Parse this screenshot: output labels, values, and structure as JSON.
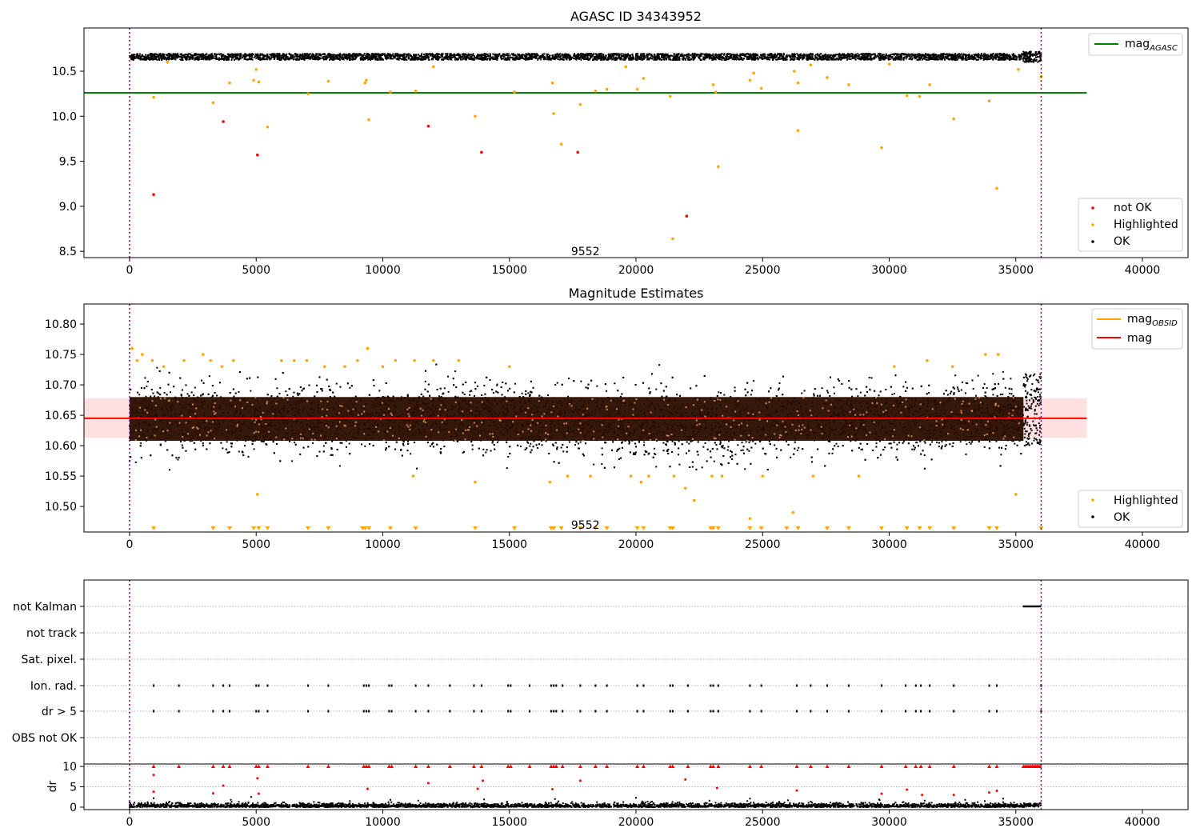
{
  "chart_data": [
    {
      "id": "agasc",
      "type": "scatter",
      "title": "AGASC ID 34343952",
      "xlim": [
        -1800,
        41800
      ],
      "ylim": [
        8.43,
        10.98
      ],
      "xticks": [
        0,
        5000,
        10000,
        15000,
        20000,
        25000,
        30000,
        35000,
        40000
      ],
      "yticks": [
        8.5,
        9.0,
        9.5,
        10.0,
        10.5
      ],
      "ytick_labels": [
        "8.5",
        "9.0",
        "9.5",
        "10.0",
        "10.5"
      ],
      "annotation": {
        "text": "9552",
        "x": 18000,
        "y": 8.5
      },
      "vlines": [
        0,
        36000
      ],
      "hline": {
        "y": 10.26,
        "x": [
          -1800,
          37800
        ],
        "color": "#008000",
        "label": "mag_AGASC"
      },
      "line_legend": {
        "label_main": "mag",
        "label_sub": "AGASC",
        "color": "#008000"
      },
      "band": {
        "center": 10.66,
        "spread": 0.035,
        "x_end": 35300,
        "color": "#000000"
      },
      "cluster": {
        "x": [
          35300,
          36000
        ],
        "y": [
          10.6,
          10.72
        ]
      },
      "series": [
        {
          "name": "not OK",
          "color": "#ff0000",
          "points": [
            [
              950,
              9.13
            ],
            [
              3700,
              9.94
            ],
            [
              5050,
              9.57
            ],
            [
              11800,
              9.89
            ],
            [
              13900,
              9.6
            ],
            [
              17700,
              9.6
            ],
            [
              22000,
              8.89
            ]
          ]
        },
        {
          "name": "Highlighted",
          "color": "#ffa500",
          "points": [
            [
              950,
              10.21
            ],
            [
              3300,
              10.15
            ],
            [
              3950,
              10.37
            ],
            [
              4900,
              10.4
            ],
            [
              5100,
              10.38
            ],
            [
              5450,
              9.88
            ],
            [
              5000,
              10.52
            ],
            [
              7050,
              10.25
            ],
            [
              7850,
              10.39
            ],
            [
              9350,
              10.4
            ],
            [
              9450,
              9.96
            ],
            [
              9300,
              10.37
            ],
            [
              10300,
              10.27
            ],
            [
              11300,
              10.28
            ],
            [
              13650,
              10.0
            ],
            [
              15200,
              10.27
            ],
            [
              16700,
              10.37
            ],
            [
              16750,
              10.03
            ],
            [
              17050,
              9.69
            ],
            [
              17800,
              10.13
            ],
            [
              18400,
              10.28
            ],
            [
              18850,
              10.3
            ],
            [
              20050,
              10.3
            ],
            [
              20300,
              10.42
            ],
            [
              21350,
              10.22
            ],
            [
              21450,
              8.64
            ],
            [
              23050,
              10.35
            ],
            [
              23250,
              9.44
            ],
            [
              23150,
              10.27
            ],
            [
              24500,
              10.4
            ],
            [
              24650,
              10.48
            ],
            [
              24950,
              10.31
            ],
            [
              26250,
              10.5
            ],
            [
              26400,
              10.37
            ],
            [
              26400,
              9.84
            ],
            [
              27550,
              10.43
            ],
            [
              28400,
              10.35
            ],
            [
              29700,
              9.65
            ],
            [
              30700,
              10.23
            ],
            [
              31200,
              10.22
            ],
            [
              31600,
              10.35
            ],
            [
              32550,
              9.97
            ],
            [
              33950,
              10.17
            ],
            [
              34250,
              9.2
            ],
            [
              35100,
              10.52
            ],
            [
              36000,
              10.44
            ],
            [
              1500,
              10.6
            ],
            [
              12000,
              10.55
            ],
            [
              19600,
              10.55
            ],
            [
              26900,
              10.57
            ],
            [
              30000,
              10.58
            ]
          ]
        }
      ],
      "legend_scatter": [
        {
          "label": "not OK",
          "color": "#ff0000"
        },
        {
          "label": "Highlighted",
          "color": "#ffa500"
        },
        {
          "label": "OK",
          "color": "#000000"
        }
      ]
    },
    {
      "id": "mag",
      "type": "scatter",
      "title": "Magnitude Estimates",
      "xlim": [
        -1800,
        41800
      ],
      "ylim": [
        10.458,
        10.833
      ],
      "xticks": [
        0,
        5000,
        10000,
        15000,
        20000,
        25000,
        30000,
        35000,
        40000
      ],
      "yticks": [
        10.5,
        10.55,
        10.6,
        10.65,
        10.7,
        10.75,
        10.8
      ],
      "ytick_labels": [
        "10.50",
        "10.55",
        "10.60",
        "10.65",
        "10.70",
        "10.75",
        "10.80"
      ],
      "annotation": {
        "text": "9552",
        "x": 18000,
        "y": 10.47
      },
      "vlines": [
        0,
        36000
      ],
      "hline": {
        "y": 10.645,
        "x": [
          -1800,
          37800
        ],
        "color": "#ff0000",
        "label": "mag"
      },
      "shade": {
        "y": [
          10.613,
          10.678
        ],
        "x": [
          -1800,
          37800
        ],
        "color": "#ff0000",
        "alpha": 0.12
      },
      "obsid_band": {
        "y": [
          10.608,
          10.68
        ],
        "x": [
          0,
          36000
        ],
        "color": "#2a0d00"
      },
      "line_legend": [
        {
          "label_main": "mag",
          "label_sub": "OBSID",
          "color": "#ffa500"
        },
        {
          "label_main": "mag",
          "label_sub": "",
          "color": "#ff0000"
        }
      ],
      "highlighted_points": [
        [
          100,
          10.76
        ],
        [
          300,
          10.74
        ],
        [
          500,
          10.75
        ],
        [
          900,
          10.74
        ],
        [
          1350,
          10.73
        ],
        [
          2150,
          10.74
        ],
        [
          2900,
          10.75
        ],
        [
          3200,
          10.74
        ],
        [
          3650,
          10.73
        ],
        [
          4100,
          10.74
        ],
        [
          5050,
          10.52
        ],
        [
          6000,
          10.74
        ],
        [
          6500,
          10.74
        ],
        [
          7000,
          10.74
        ],
        [
          7700,
          10.73
        ],
        [
          8500,
          10.73
        ],
        [
          9000,
          10.74
        ],
        [
          9400,
          10.76
        ],
        [
          10000,
          10.73
        ],
        [
          10500,
          10.74
        ],
        [
          11200,
          10.55
        ],
        [
          11250,
          10.74
        ],
        [
          12000,
          10.74
        ],
        [
          13000,
          10.74
        ],
        [
          13650,
          10.54
        ],
        [
          15000,
          10.73
        ],
        [
          16600,
          10.54
        ],
        [
          17300,
          10.55
        ],
        [
          18200,
          10.55
        ],
        [
          19800,
          10.55
        ],
        [
          20200,
          10.54
        ],
        [
          20500,
          10.55
        ],
        [
          21500,
          10.55
        ],
        [
          21950,
          10.53
        ],
        [
          22300,
          10.51
        ],
        [
          23000,
          10.55
        ],
        [
          23400,
          10.55
        ],
        [
          24500,
          10.48
        ],
        [
          25000,
          10.55
        ],
        [
          26200,
          10.49
        ],
        [
          27000,
          10.55
        ],
        [
          28800,
          10.55
        ],
        [
          30200,
          10.73
        ],
        [
          31500,
          10.74
        ],
        [
          32500,
          10.73
        ],
        [
          33800,
          10.75
        ],
        [
          34300,
          10.75
        ],
        [
          35000,
          10.52
        ]
      ],
      "arrow_x": [
        950,
        3300,
        3950,
        4900,
        5100,
        5450,
        7050,
        7850,
        9200,
        9300,
        9450,
        10300,
        11300,
        13650,
        15200,
        16650,
        16750,
        17050,
        17800,
        18400,
        18850,
        20050,
        20300,
        21350,
        21450,
        22950,
        23050,
        23250,
        24500,
        24950,
        25950,
        26400,
        27550,
        28400,
        29700,
        30700,
        31200,
        31600,
        32550,
        33950,
        34250,
        36000
      ],
      "legend_scatter": [
        {
          "label": "Highlighted",
          "color": "#ffa500"
        },
        {
          "label": "OK",
          "color": "#000000"
        }
      ]
    },
    {
      "id": "flags",
      "type": "scatter",
      "xlim": [
        -1800,
        41800
      ],
      "categories": [
        "not Kalman",
        "not track",
        "Sat. pixel.",
        "Ion. rad.",
        "dr > 5",
        "OBS not OK"
      ],
      "vlines": [
        0,
        36000
      ],
      "not_kalman_x": [
        35300,
        36000
      ],
      "ion_rad_x": [
        950,
        1950,
        3300,
        3700,
        3950,
        5000,
        5100,
        5450,
        7050,
        7850,
        9250,
        9350,
        9450,
        10250,
        10350,
        11300,
        11800,
        12650,
        13600,
        13900,
        14950,
        15050,
        15800,
        16650,
        16750,
        16850,
        17100,
        17800,
        18400,
        18850,
        20050,
        20300,
        21350,
        21450,
        22050,
        22950,
        23050,
        23250,
        24500,
        24950,
        26350,
        26900,
        27550,
        28400,
        29700,
        30650,
        31050,
        31250,
        31600,
        32550,
        33950,
        34250,
        36000
      ],
      "dr_gt5_x": [
        950,
        1950,
        3300,
        3700,
        3950,
        5000,
        5100,
        5450,
        7050,
        7850,
        9250,
        9350,
        9450,
        10250,
        10350,
        11300,
        11800,
        12650,
        13600,
        13900,
        14950,
        15050,
        15800,
        16650,
        16750,
        16850,
        17100,
        17800,
        18400,
        18850,
        20050,
        20300,
        21350,
        21450,
        22050,
        22950,
        23050,
        23250,
        24500,
        24950,
        26350,
        26900,
        27550,
        28400,
        29700,
        30650,
        31050,
        31250,
        31600,
        32550,
        33950,
        34250,
        36000
      ]
    },
    {
      "id": "dr",
      "type": "scatter",
      "ylabel": "dr",
      "xlim": [
        -1800,
        41800
      ],
      "ylim": [
        -0.6,
        10.6
      ],
      "xticks": [
        0,
        5000,
        10000,
        15000,
        20000,
        25000,
        30000,
        35000,
        40000
      ],
      "yticks": [
        0,
        5,
        10
      ],
      "vlines": [
        0,
        36000
      ],
      "capped_x": [
        950,
        1950,
        3300,
        3700,
        3950,
        5000,
        5100,
        5450,
        7050,
        7850,
        9250,
        9350,
        9450,
        10250,
        10350,
        11300,
        11800,
        12650,
        13600,
        13900,
        14950,
        15050,
        15800,
        16650,
        16750,
        16850,
        17100,
        17800,
        18400,
        18850,
        20050,
        20300,
        21350,
        21450,
        22050,
        22950,
        23050,
        23250,
        24500,
        24950,
        26350,
        26900,
        27550,
        28400,
        29700,
        30650,
        31050,
        31250,
        31600,
        32550,
        33950,
        34250
      ],
      "capped_cluster": [
        35300,
        36000
      ],
      "red_points": [
        [
          950,
          7.9
        ],
        [
          950,
          3.8
        ],
        [
          3300,
          3.4
        ],
        [
          3700,
          5.3
        ],
        [
          5050,
          7.1
        ],
        [
          5100,
          3.3
        ],
        [
          9400,
          4.5
        ],
        [
          11800,
          5.9
        ],
        [
          13750,
          4.5
        ],
        [
          13950,
          6.5
        ],
        [
          16700,
          4.4
        ],
        [
          17800,
          6.5
        ],
        [
          21950,
          6.8
        ],
        [
          23200,
          4.7
        ],
        [
          26350,
          4.1
        ],
        [
          29700,
          3.3
        ],
        [
          30700,
          4.3
        ],
        [
          31300,
          3.0
        ],
        [
          32550,
          3.0
        ],
        [
          33950,
          3.6
        ],
        [
          34250,
          4.0
        ]
      ],
      "black_points": [
        [
          950,
          2.2
        ],
        [
          4000,
          1.8
        ],
        [
          4800,
          2.5
        ],
        [
          8700,
          1.5
        ],
        [
          10300,
          1.8
        ],
        [
          11400,
          1.6
        ],
        [
          14000,
          1.9
        ],
        [
          16800,
          2.0
        ],
        [
          20000,
          2.3
        ],
        [
          22900,
          1.6
        ],
        [
          24500,
          2.1
        ],
        [
          26000,
          1.7
        ],
        [
          29600,
          1.9
        ],
        [
          31400,
          1.6
        ],
        [
          33000,
          1.8
        ],
        [
          34500,
          2.1
        ]
      ]
    }
  ]
}
